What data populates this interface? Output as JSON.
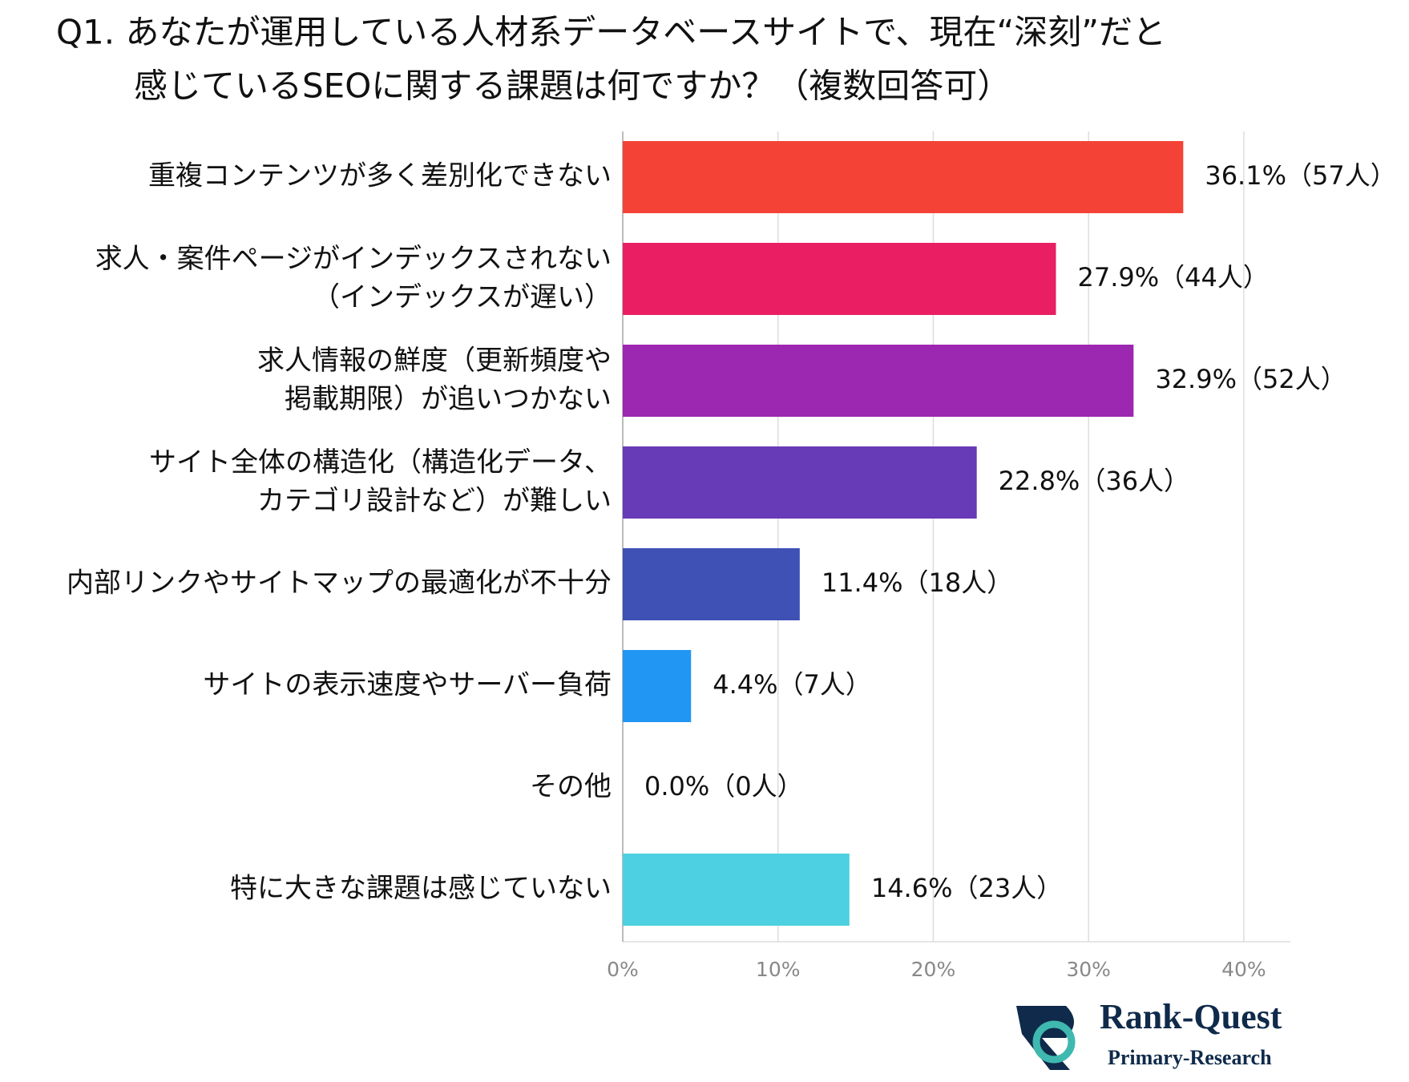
{
  "chart_data": {
    "type": "bar",
    "orientation": "horizontal",
    "title": [
      "Q1. あなたが運用している人材系データベースサイトで、現在“深刻”だと",
      "感じているSEOに関する課題は何ですか？（複数回答可）"
    ],
    "categories": [
      "重複コンテンツが多く差別化できない",
      "求人・案件ページがインデックスされない\n（インデックスが遅い）",
      "求人情報の鮮度（更新頻度や\n掲載期限）が追いつかない",
      "サイト全体の構造化（構造化データ、\nカテゴリ設計など）が難しい",
      "内部リンクやサイトマップの最適化が不十分",
      "サイトの表示速度やサーバー負荷",
      "その他",
      "特に大きな課題は感じていない"
    ],
    "values": [
      36.1,
      27.9,
      32.9,
      22.8,
      11.4,
      4.4,
      0.0,
      14.6
    ],
    "value_labels": [
      "36.1%（57人）",
      "27.9%（44人）",
      "32.9%（52人）",
      "22.8%（36人）",
      "11.4%（18人）",
      "4.4%（7人）",
      "0.0%（0人）",
      "14.6%（23人）"
    ],
    "colors": [
      "#f44336",
      "#e91e63",
      "#9c27b0",
      "#673ab7",
      "#3f51b5",
      "#2196f3",
      "#9e9e9e",
      "#4dd0e1"
    ],
    "xlim": [
      0,
      43
    ],
    "xticks": [
      {
        "value": 0,
        "label": "0%"
      },
      {
        "value": 10,
        "label": "10%"
      },
      {
        "value": 20,
        "label": "20%"
      },
      {
        "value": 30,
        "label": "30%"
      },
      {
        "value": 40,
        "label": "40%"
      }
    ],
    "grid": true,
    "logo": {
      "name": "Rank-Quest",
      "subtitle": "Primary-Research"
    }
  }
}
